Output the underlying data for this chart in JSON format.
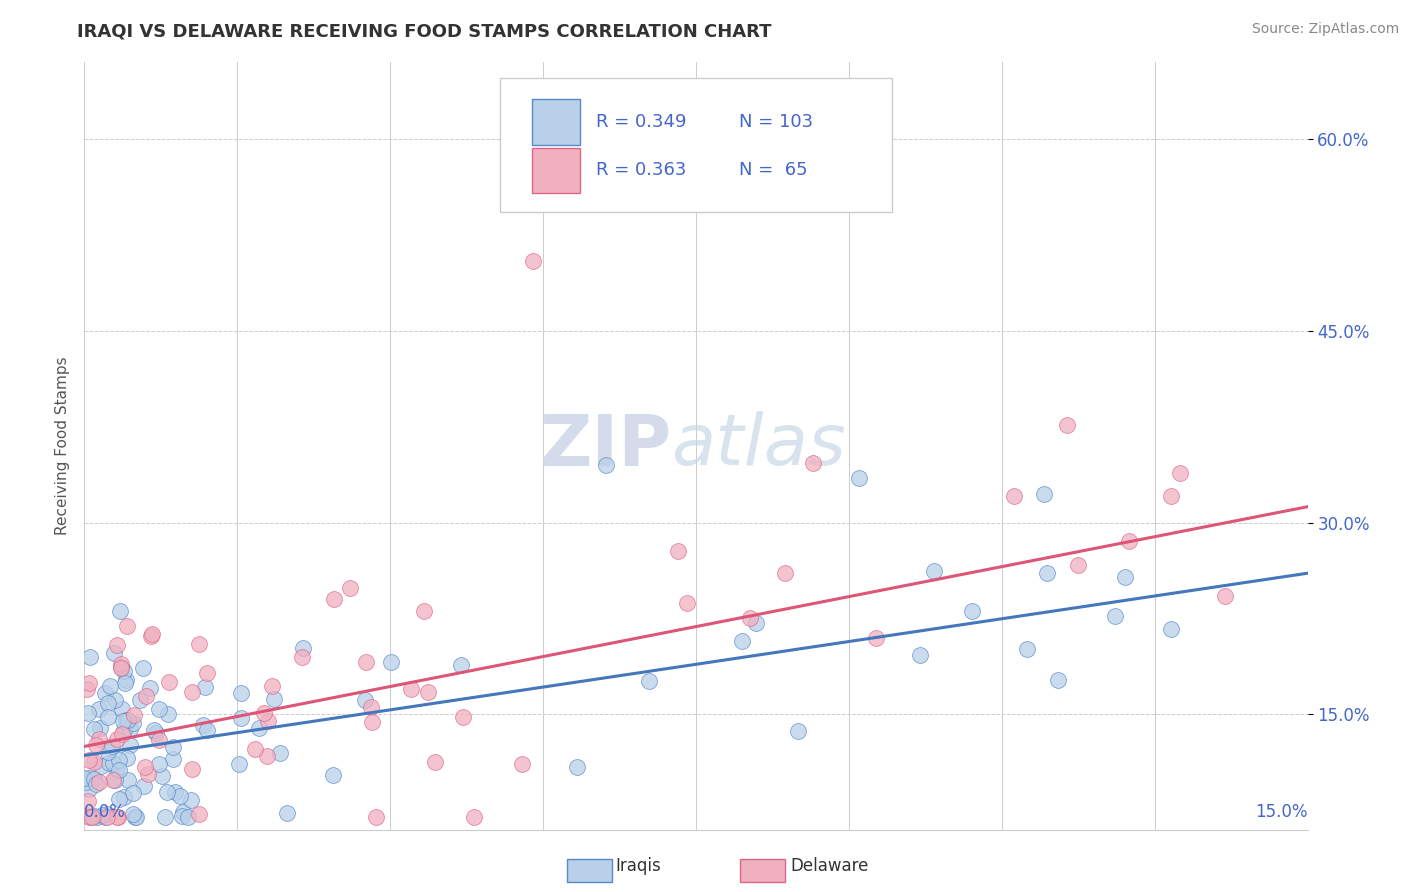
{
  "title": "IRAQI VS DELAWARE RECEIVING FOOD STAMPS CORRELATION CHART",
  "source": "Source: ZipAtlas.com",
  "ylabel": "Receiving Food Stamps",
  "yticks": [
    0.15,
    0.3,
    0.45,
    0.6
  ],
  "ytick_labels": [
    "15.0%",
    "30.0%",
    "45.0%",
    "60.0%"
  ],
  "xlim": [
    0.0,
    0.15
  ],
  "ylim": [
    0.06,
    0.66
  ],
  "legend_blue_R": "0.349",
  "legend_blue_N": "103",
  "legend_pink_R": "0.363",
  "legend_pink_N": "65",
  "legend_entries": [
    "Iraqis",
    "Delaware"
  ],
  "blue_fill": "#b8d0e8",
  "blue_edge": "#5588cc",
  "pink_fill": "#f0b0c0",
  "pink_edge": "#dd6688",
  "blue_line": "#4477bb",
  "pink_line": "#dd5577",
  "legend_text_color": "#4466cc",
  "title_color": "#333333",
  "grid_color": "#cccccc",
  "blue_intercept": 0.118,
  "blue_slope": 0.95,
  "pink_intercept": 0.125,
  "pink_slope": 1.25
}
